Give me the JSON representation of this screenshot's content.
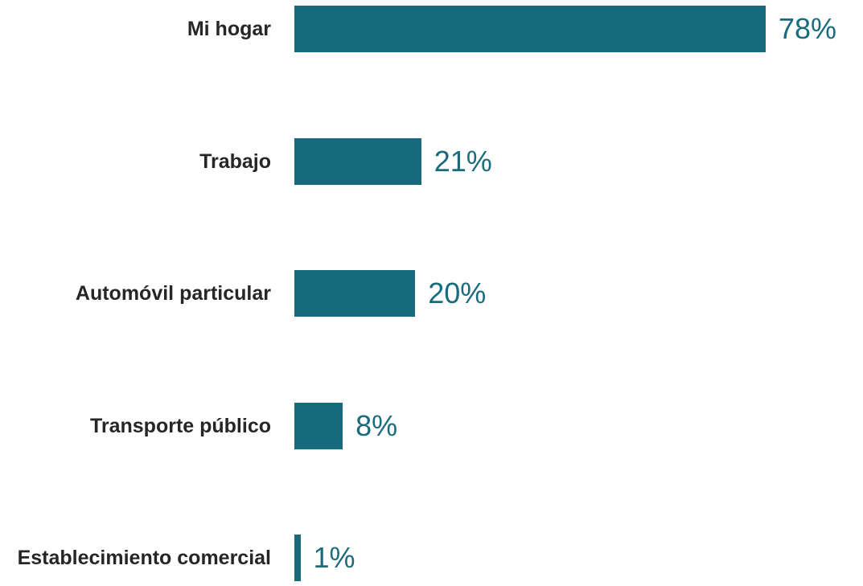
{
  "chart_data": {
    "type": "hbar",
    "categories": [
      "Mi hogar",
      "Trabajo",
      "Automóvil particular",
      "Transporte público",
      "Establecimiento comercial"
    ],
    "values": [
      78,
      21,
      20,
      8,
      1
    ],
    "value_labels": [
      "78%",
      "21%",
      "20%",
      "8%",
      "1%"
    ],
    "color": "#176a7b"
  }
}
